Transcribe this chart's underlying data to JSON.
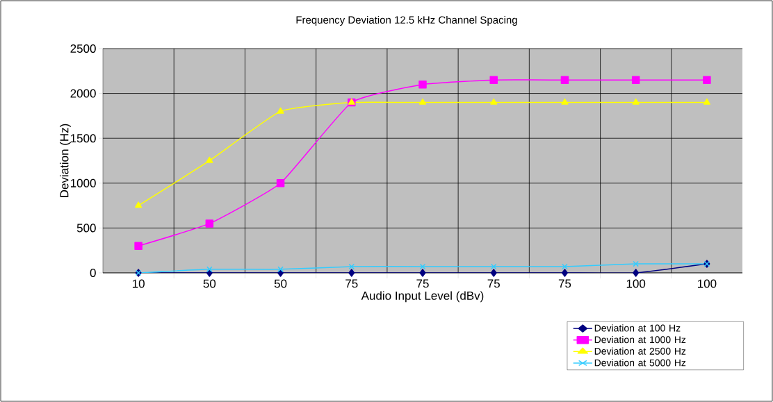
{
  "chart_data": {
    "type": "line",
    "title": "Frequency Deviation 12.5 kHz Channel Spacing",
    "xlabel": "Audio Input Level (dBv)",
    "ylabel": "Deviation (Hz)",
    "categories": [
      "10",
      "50",
      "50",
      "75",
      "75",
      "75",
      "75",
      "100",
      "100"
    ],
    "series": [
      {
        "name": "Deviation at 100 Hz",
        "color": "#000080",
        "marker": "diamond",
        "values": [
          0,
          0,
          0,
          0,
          0,
          0,
          0,
          0,
          100
        ]
      },
      {
        "name": "Deviation at 1000 Hz",
        "color": "#ff00ff",
        "marker": "square",
        "values": [
          300,
          550,
          1000,
          1900,
          2100,
          2150,
          2150,
          2150,
          2150
        ]
      },
      {
        "name": "Deviation at 2500 Hz",
        "color": "#ffff00",
        "marker": "triangle",
        "values": [
          750,
          1250,
          1800,
          1900,
          1900,
          1900,
          1900,
          1900,
          1900
        ]
      },
      {
        "name": "Deviation at 5000 Hz",
        "color": "#33ccff",
        "marker": "cross",
        "values": [
          0,
          40,
          40,
          70,
          70,
          70,
          70,
          100,
          100
        ]
      }
    ],
    "ylim": [
      0,
      2500
    ],
    "yticks": [
      0,
      500,
      1000,
      1500,
      2000,
      2500
    ],
    "grid": true,
    "legend": "bottom right",
    "line_style": "solid"
  }
}
